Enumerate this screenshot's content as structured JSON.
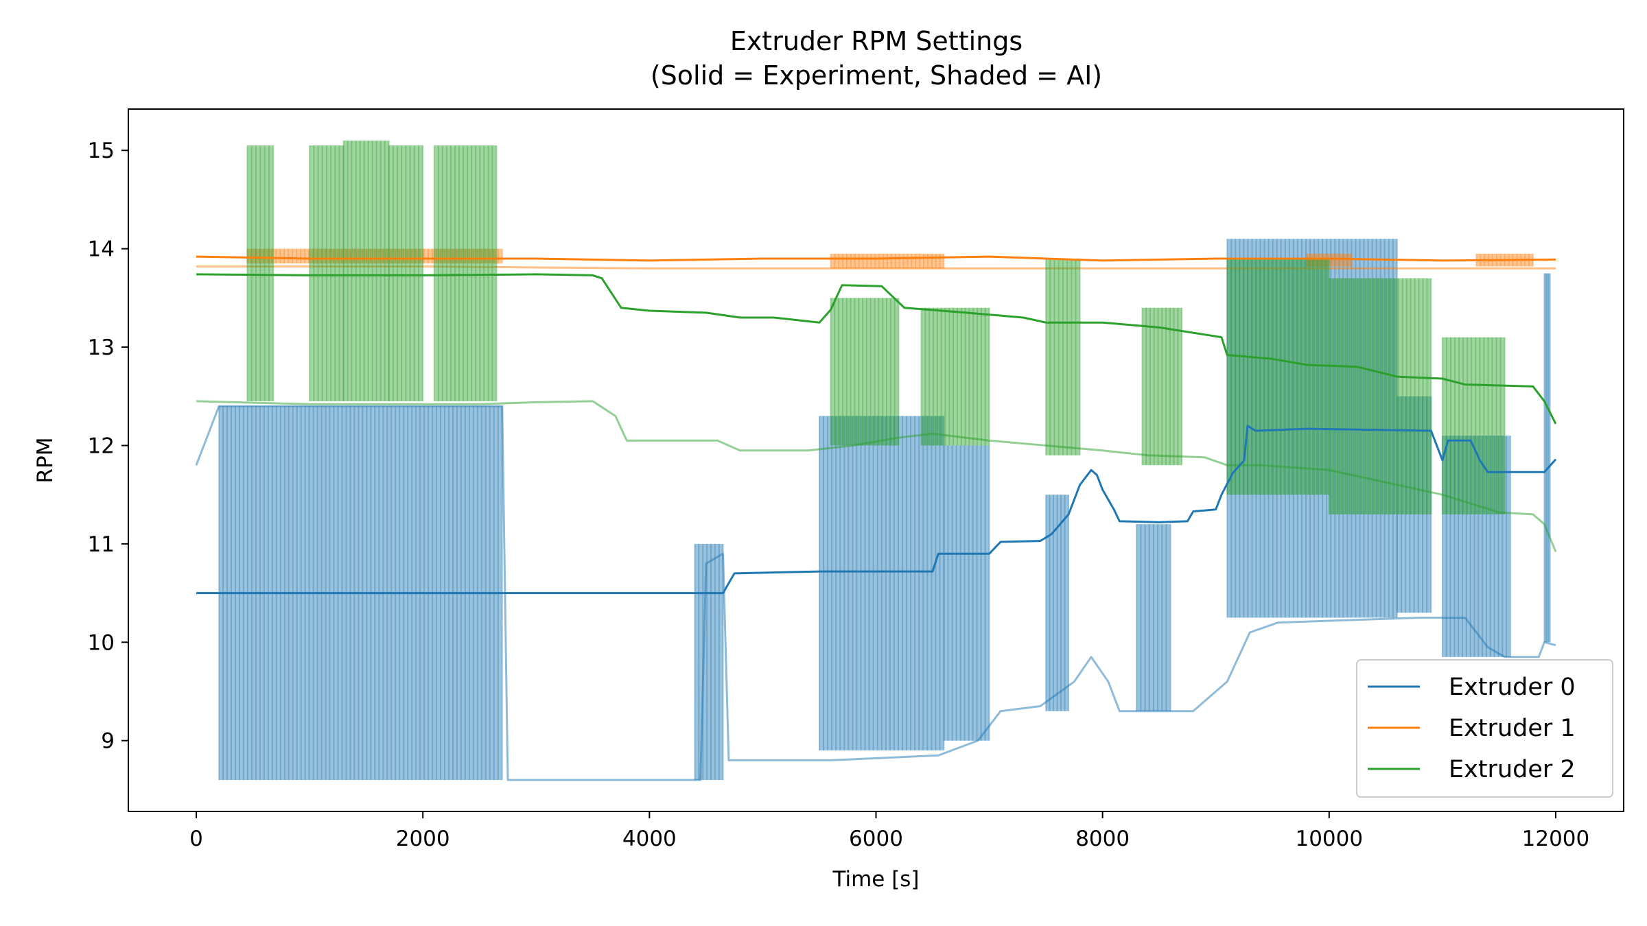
{
  "chart_data": {
    "type": "line",
    "title": "Extruder RPM Settings",
    "subtitle": "(Solid = Experiment, Shaded = AI)",
    "xlabel": "Time [s]",
    "ylabel": "RPM",
    "xlim": [
      -600,
      12600
    ],
    "ylim": [
      8.28,
      15.42
    ],
    "x_ticks": [
      0,
      2000,
      4000,
      6000,
      8000,
      10000,
      12000
    ],
    "x_tick_labels": [
      "0",
      "2000",
      "4000",
      "6000",
      "8000",
      "10000",
      "12000"
    ],
    "y_ticks": [
      9,
      10,
      11,
      12,
      13,
      14,
      15
    ],
    "y_tick_labels": [
      "9",
      "10",
      "11",
      "12",
      "13",
      "14",
      "15"
    ],
    "grid": false,
    "legend": {
      "placement": "lower-right",
      "entries": [
        "Extruder 0",
        "Extruder 1",
        "Extruder 2"
      ]
    },
    "series": [
      {
        "name": "Extruder 0",
        "style": "solid",
        "color": "#1f77b4",
        "points": [
          [
            0,
            10.5
          ],
          [
            4650,
            10.5
          ],
          [
            4700,
            10.6
          ],
          [
            4750,
            10.7
          ],
          [
            5500,
            10.72
          ],
          [
            6500,
            10.72
          ],
          [
            6550,
            10.9
          ],
          [
            7000,
            10.9
          ],
          [
            7100,
            11.02
          ],
          [
            7450,
            11.03
          ],
          [
            7550,
            11.1
          ],
          [
            7700,
            11.3
          ],
          [
            7800,
            11.6
          ],
          [
            7900,
            11.75
          ],
          [
            7950,
            11.7
          ],
          [
            8000,
            11.55
          ],
          [
            8100,
            11.35
          ],
          [
            8150,
            11.23
          ],
          [
            8500,
            11.22
          ],
          [
            8750,
            11.23
          ],
          [
            8800,
            11.33
          ],
          [
            9000,
            11.35
          ],
          [
            9050,
            11.5
          ],
          [
            9150,
            11.72
          ],
          [
            9250,
            11.85
          ],
          [
            9280,
            12.2
          ],
          [
            9350,
            12.15
          ],
          [
            9800,
            12.17
          ],
          [
            10900,
            12.15
          ],
          [
            11000,
            11.85
          ],
          [
            11050,
            12.05
          ],
          [
            11250,
            12.05
          ],
          [
            11330,
            11.85
          ],
          [
            11400,
            11.73
          ],
          [
            11900,
            11.73
          ],
          [
            12000,
            11.86
          ]
        ]
      },
      {
        "name": "Extruder 1",
        "style": "solid",
        "color": "#ff7f0e",
        "points": [
          [
            0,
            13.92
          ],
          [
            1000,
            13.9
          ],
          [
            2000,
            13.9
          ],
          [
            3000,
            13.9
          ],
          [
            4000,
            13.88
          ],
          [
            5000,
            13.9
          ],
          [
            6000,
            13.9
          ],
          [
            7000,
            13.92
          ],
          [
            8000,
            13.88
          ],
          [
            9000,
            13.9
          ],
          [
            10000,
            13.9
          ],
          [
            11000,
            13.88
          ],
          [
            12000,
            13.89
          ]
        ]
      },
      {
        "name": "Extruder 2",
        "style": "solid",
        "color": "#2ca02c",
        "points": [
          [
            0,
            13.74
          ],
          [
            1000,
            13.73
          ],
          [
            2000,
            13.73
          ],
          [
            3000,
            13.74
          ],
          [
            3500,
            13.73
          ],
          [
            3580,
            13.7
          ],
          [
            3750,
            13.4
          ],
          [
            4000,
            13.37
          ],
          [
            4500,
            13.35
          ],
          [
            4800,
            13.3
          ],
          [
            5100,
            13.3
          ],
          [
            5500,
            13.25
          ],
          [
            5600,
            13.38
          ],
          [
            5700,
            13.63
          ],
          [
            6050,
            13.62
          ],
          [
            6250,
            13.4
          ],
          [
            6800,
            13.35
          ],
          [
            7300,
            13.3
          ],
          [
            7500,
            13.25
          ],
          [
            8000,
            13.25
          ],
          [
            8500,
            13.2
          ],
          [
            9050,
            13.1
          ],
          [
            9100,
            12.92
          ],
          [
            9500,
            12.88
          ],
          [
            9800,
            12.82
          ],
          [
            10250,
            12.8
          ],
          [
            10600,
            12.7
          ],
          [
            11000,
            12.68
          ],
          [
            11200,
            12.62
          ],
          [
            11800,
            12.6
          ],
          [
            11900,
            12.45
          ],
          [
            12000,
            12.22
          ]
        ]
      },
      {
        "name": "Extruder 0 (AI)",
        "style": "shaded",
        "color": "#1f77b4",
        "low_points": [
          [
            0,
            11.8
          ],
          [
            200,
            12.4
          ],
          [
            2700,
            12.4
          ],
          [
            2750,
            8.6
          ],
          [
            4450,
            8.6
          ],
          [
            4500,
            10.8
          ],
          [
            4650,
            10.9
          ],
          [
            4700,
            8.8
          ],
          [
            5600,
            8.8
          ],
          [
            6550,
            8.85
          ],
          [
            6900,
            9.0
          ],
          [
            7100,
            9.3
          ],
          [
            7450,
            9.35
          ],
          [
            7750,
            9.6
          ],
          [
            7900,
            9.85
          ],
          [
            8050,
            9.6
          ],
          [
            8150,
            9.3
          ],
          [
            8800,
            9.3
          ],
          [
            9100,
            9.6
          ],
          [
            9300,
            10.1
          ],
          [
            9550,
            10.2
          ],
          [
            10800,
            10.25
          ],
          [
            11200,
            10.25
          ],
          [
            11400,
            9.95
          ],
          [
            11550,
            9.85
          ],
          [
            11850,
            9.85
          ],
          [
            11900,
            10.0
          ],
          [
            12000,
            9.97
          ]
        ],
        "bands": [
          [
            200,
            2700,
            8.6,
            12.4
          ],
          [
            4400,
            4650,
            8.6,
            11.0
          ],
          [
            5500,
            6600,
            8.9,
            12.3
          ],
          [
            6600,
            7000,
            9.0,
            12.0
          ],
          [
            7500,
            7700,
            9.3,
            11.5
          ],
          [
            8300,
            8600,
            9.3,
            11.2
          ],
          [
            9100,
            10600,
            10.25,
            14.1
          ],
          [
            10600,
            10900,
            10.3,
            12.5
          ],
          [
            11000,
            11600,
            9.85,
            12.1
          ],
          [
            11900,
            11950,
            10.0,
            13.75
          ]
        ]
      },
      {
        "name": "Extruder 1 (AI)",
        "style": "shaded",
        "color": "#ff7f0e",
        "low_points": [
          [
            0,
            13.82
          ],
          [
            2000,
            13.82
          ],
          [
            4000,
            13.8
          ],
          [
            6000,
            13.8
          ],
          [
            8000,
            13.8
          ],
          [
            10000,
            13.8
          ],
          [
            12000,
            13.8
          ]
        ],
        "bands": [
          [
            450,
            2700,
            13.85,
            14.0
          ],
          [
            5600,
            6600,
            13.8,
            13.95
          ],
          [
            9800,
            10200,
            13.82,
            13.95
          ],
          [
            11300,
            11800,
            13.82,
            13.95
          ]
        ]
      },
      {
        "name": "Extruder 2 (AI)",
        "style": "shaded",
        "color": "#2ca02c",
        "low_points": [
          [
            0,
            12.45
          ],
          [
            1000,
            12.42
          ],
          [
            2500,
            12.42
          ],
          [
            3000,
            12.44
          ],
          [
            3500,
            12.45
          ],
          [
            3700,
            12.3
          ],
          [
            3800,
            12.05
          ],
          [
            4600,
            12.05
          ],
          [
            4800,
            11.95
          ],
          [
            5400,
            11.95
          ],
          [
            5800,
            12.0
          ],
          [
            6200,
            12.08
          ],
          [
            6500,
            12.12
          ],
          [
            7000,
            12.05
          ],
          [
            7500,
            12.0
          ],
          [
            8000,
            11.95
          ],
          [
            8400,
            11.9
          ],
          [
            8900,
            11.88
          ],
          [
            9100,
            11.8
          ],
          [
            9400,
            11.8
          ],
          [
            10000,
            11.75
          ],
          [
            11000,
            11.5
          ],
          [
            11500,
            11.32
          ],
          [
            11800,
            11.3
          ],
          [
            11900,
            11.2
          ],
          [
            12000,
            10.92
          ]
        ],
        "bands": [
          [
            450,
            680,
            12.45,
            15.05
          ],
          [
            1000,
            1300,
            12.45,
            15.05
          ],
          [
            1300,
            1700,
            12.45,
            15.1
          ],
          [
            1700,
            2000,
            12.45,
            15.05
          ],
          [
            2100,
            2650,
            12.45,
            15.05
          ],
          [
            5600,
            6200,
            12.0,
            13.5
          ],
          [
            6400,
            7000,
            12.0,
            13.4
          ],
          [
            7500,
            7800,
            11.9,
            13.9
          ],
          [
            8350,
            8700,
            11.8,
            13.4
          ],
          [
            9100,
            10000,
            11.5,
            13.9
          ],
          [
            10000,
            10900,
            11.3,
            13.7
          ],
          [
            11000,
            11550,
            11.3,
            13.1
          ]
        ]
      }
    ]
  }
}
